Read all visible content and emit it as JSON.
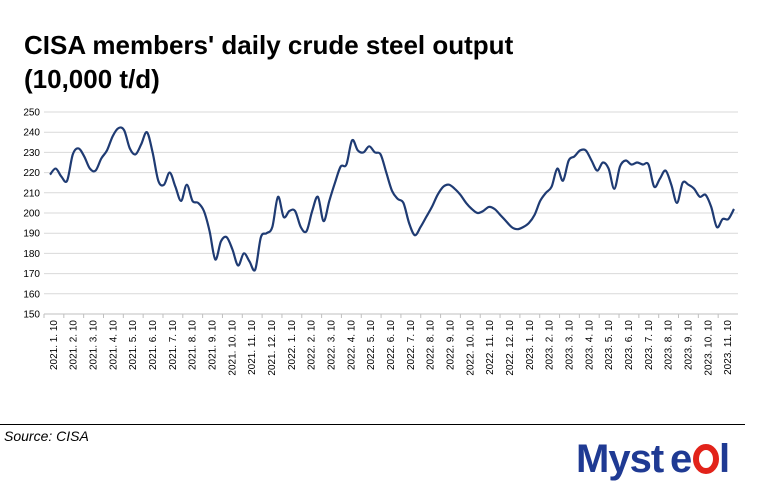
{
  "title": "CISA members' daily crude steel output (10,000 t/d)",
  "source": "Source: CISA",
  "logo": {
    "text": "Mysteel",
    "primary_color": "#1f3a93",
    "accent_color": "#e2231a"
  },
  "colors": {
    "line": "#1f3b73",
    "grid": "#d9d9d9"
  },
  "chart_data": {
    "type": "line",
    "title": "CISA members' daily crude steel output (10,000 t/d)",
    "xlabel": "",
    "ylabel": "",
    "ylim": [
      150,
      250
    ],
    "yticks": [
      150,
      160,
      170,
      180,
      190,
      200,
      210,
      220,
      230,
      240,
      250
    ],
    "grid": true,
    "legend": "none",
    "x_tick_labels": [
      "2021. 1. 10",
      "2021. 2. 10",
      "2021. 3. 10",
      "2021. 4. 10",
      "2021. 5. 10",
      "2021. 6. 10",
      "2021. 7. 10",
      "2021. 8. 10",
      "2021. 9. 10",
      "2021. 10. 10",
      "2021. 11. 10",
      "2021. 12. 10",
      "2022. 1. 10",
      "2022. 2. 10",
      "2022. 3. 10",
      "2022. 4. 10",
      "2022. 5. 10",
      "2022. 6. 10",
      "2022. 7. 10",
      "2022. 8. 10",
      "2022. 9. 10",
      "2022. 10. 10",
      "2022. 11. 10",
      "2022. 12. 10",
      "2023. 1. 10",
      "2023. 2. 10",
      "2023. 3. 10",
      "2023. 4. 10",
      "2023. 5. 10",
      "2023. 6. 10",
      "2023. 7. 10",
      "2023. 8. 10",
      "2023. 9. 10",
      "2023. 10. 10",
      "2023. 11. 10"
    ],
    "series": [
      {
        "values": [
          219,
          222,
          218,
          216,
          229,
          232,
          228,
          222,
          221,
          227,
          231,
          238,
          242,
          241,
          232,
          229,
          234,
          240,
          230,
          216,
          214,
          220,
          213,
          206,
          214,
          206,
          205,
          201,
          191,
          177,
          186,
          188,
          182,
          174,
          180,
          176,
          172,
          188,
          190,
          193,
          208,
          198,
          201,
          201,
          193,
          191,
          201,
          208,
          196,
          206,
          215,
          223,
          224,
          236,
          231,
          230,
          233,
          230,
          229,
          220,
          211,
          207,
          205,
          195,
          189,
          193,
          198,
          203,
          209,
          213,
          214,
          212,
          209,
          205,
          202,
          200,
          201,
          203,
          202,
          199,
          196,
          193,
          192,
          193,
          195,
          199,
          206,
          210,
          213,
          222,
          216,
          226,
          228,
          231,
          231,
          226,
          221,
          225,
          222,
          212,
          223,
          226,
          224,
          225,
          224,
          224,
          213,
          217,
          221,
          214,
          205,
          215,
          214,
          212,
          208,
          209,
          203,
          193,
          197,
          197,
          202
        ]
      }
    ]
  }
}
